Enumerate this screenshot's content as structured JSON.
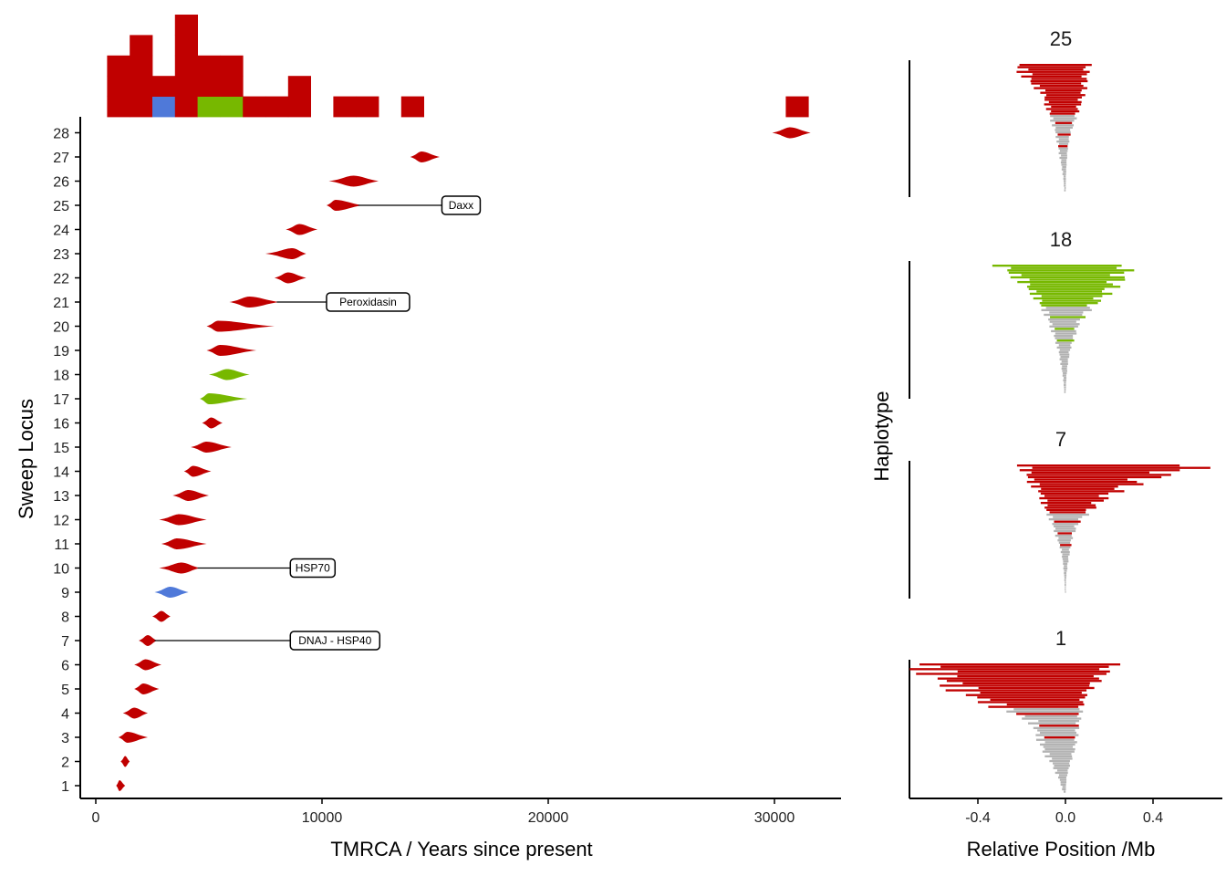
{
  "colors": {
    "red": "#c00000",
    "blue": "#4f79d9",
    "green": "#77b800",
    "grey": "#b3b3b3",
    "axis": "#000000"
  },
  "chart_data": [
    {
      "type": "violin",
      "xlabel": "TMRCA / Years since present",
      "ylabel": "Sweep Locus",
      "xlim": [
        -800,
        33000
      ],
      "x_ticks": [
        0,
        10000,
        20000,
        30000
      ],
      "x_tick_labels": [
        "0",
        "10000",
        "20000",
        "30000"
      ],
      "y_ticks": [
        1,
        2,
        3,
        4,
        5,
        6,
        7,
        8,
        9,
        10,
        11,
        12,
        13,
        14,
        15,
        16,
        17,
        18,
        19,
        20,
        21,
        22,
        23,
        24,
        25,
        26,
        27,
        28
      ],
      "y_tick_labels": [
        "1",
        "2",
        "3",
        "4",
        "5",
        "6",
        "7",
        "8",
        "9",
        "10",
        "11",
        "12",
        "13",
        "14",
        "15",
        "16",
        "17",
        "18",
        "19",
        "20",
        "21",
        "22",
        "23",
        "24",
        "25",
        "26",
        "27",
        "28"
      ],
      "loci": [
        {
          "locus": 1,
          "min": 900,
          "max": 1300,
          "peak": 1050,
          "color": "red"
        },
        {
          "locus": 2,
          "min": 1100,
          "max": 1500,
          "peak": 1300,
          "color": "red"
        },
        {
          "locus": 3,
          "min": 1000,
          "max": 2300,
          "peak": 1400,
          "color": "red"
        },
        {
          "locus": 4,
          "min": 1200,
          "max": 2300,
          "peak": 1700,
          "color": "red"
        },
        {
          "locus": 5,
          "min": 1700,
          "max": 2800,
          "peak": 2100,
          "color": "red"
        },
        {
          "locus": 6,
          "min": 1700,
          "max": 2900,
          "peak": 2200,
          "color": "red"
        },
        {
          "locus": 7,
          "min": 1900,
          "max": 2700,
          "peak": 2300,
          "color": "red"
        },
        {
          "locus": 8,
          "min": 2500,
          "max": 3300,
          "peak": 2900,
          "color": "red"
        },
        {
          "locus": 9,
          "min": 2600,
          "max": 4100,
          "peak": 3300,
          "color": "blue"
        },
        {
          "locus": 10,
          "min": 2800,
          "max": 4600,
          "peak": 3800,
          "color": "red"
        },
        {
          "locus": 11,
          "min": 2900,
          "max": 4900,
          "peak": 3600,
          "color": "red"
        },
        {
          "locus": 12,
          "min": 2800,
          "max": 4900,
          "peak": 3700,
          "color": "red"
        },
        {
          "locus": 13,
          "min": 3400,
          "max": 5000,
          "peak": 4100,
          "color": "red"
        },
        {
          "locus": 14,
          "min": 3900,
          "max": 5100,
          "peak": 4300,
          "color": "red"
        },
        {
          "locus": 15,
          "min": 4200,
          "max": 6000,
          "peak": 4900,
          "color": "red"
        },
        {
          "locus": 16,
          "min": 4700,
          "max": 5600,
          "peak": 5100,
          "color": "red"
        },
        {
          "locus": 17,
          "min": 4600,
          "max": 6700,
          "peak": 5000,
          "color": "green"
        },
        {
          "locus": 18,
          "min": 5000,
          "max": 6800,
          "peak": 5800,
          "color": "green"
        },
        {
          "locus": 19,
          "min": 4900,
          "max": 7100,
          "peak": 5500,
          "color": "red"
        },
        {
          "locus": 20,
          "min": 4900,
          "max": 7900,
          "peak": 5400,
          "color": "red"
        },
        {
          "locus": 21,
          "min": 5900,
          "max": 8100,
          "peak": 6800,
          "color": "red"
        },
        {
          "locus": 22,
          "min": 7900,
          "max": 9300,
          "peak": 8500,
          "color": "red"
        },
        {
          "locus": 23,
          "min": 7500,
          "max": 9300,
          "peak": 8700,
          "color": "red"
        },
        {
          "locus": 24,
          "min": 8400,
          "max": 9800,
          "peak": 9000,
          "color": "red"
        },
        {
          "locus": 25,
          "min": 10200,
          "max": 11800,
          "peak": 10600,
          "color": "red"
        },
        {
          "locus": 26,
          "min": 10300,
          "max": 12500,
          "peak": 11400,
          "color": "red"
        },
        {
          "locus": 27,
          "min": 13900,
          "max": 15200,
          "peak": 14400,
          "color": "red"
        },
        {
          "locus": 28,
          "min": 29900,
          "max": 31600,
          "peak": 30700,
          "color": "red"
        }
      ],
      "annotations": [
        {
          "label": "Daxx",
          "locus": 25,
          "from_x": 11600,
          "to_x": 15300
        },
        {
          "label": "Peroxidasin",
          "locus": 21,
          "from_x": 8000,
          "to_x": 10200
        },
        {
          "label": "HSP70",
          "locus": 10,
          "from_x": 4500,
          "to_x": 8600
        },
        {
          "label": "DNAJ - HSP40",
          "locus": 7,
          "from_x": 2600,
          "to_x": 8600
        }
      ]
    },
    {
      "type": "histogram",
      "bin_width": 1000,
      "bins": [
        {
          "x0": 500,
          "count": 3,
          "stack": [
            "red",
            "red",
            "red"
          ]
        },
        {
          "x0": 1500,
          "count": 4,
          "stack": [
            "red",
            "red",
            "red",
            "red"
          ]
        },
        {
          "x0": 2500,
          "count": 2,
          "stack": [
            "blue",
            "red"
          ]
        },
        {
          "x0": 3500,
          "count": 5,
          "stack": [
            "red",
            "red",
            "red",
            "red",
            "red"
          ]
        },
        {
          "x0": 4500,
          "count": 3,
          "stack": [
            "green",
            "red",
            "red"
          ]
        },
        {
          "x0": 5500,
          "count": 3,
          "stack": [
            "green",
            "red",
            "red"
          ]
        },
        {
          "x0": 6500,
          "count": 1,
          "stack": [
            "red"
          ]
        },
        {
          "x0": 7500,
          "count": 1,
          "stack": [
            "red"
          ]
        },
        {
          "x0": 8500,
          "count": 2,
          "stack": [
            "red",
            "red"
          ]
        },
        {
          "x0": 10500,
          "count": 1,
          "stack": [
            "red"
          ]
        },
        {
          "x0": 11500,
          "count": 1,
          "stack": [
            "red"
          ]
        },
        {
          "x0": 13500,
          "count": 1,
          "stack": [
            "red"
          ]
        },
        {
          "x0": 30500,
          "count": 1,
          "stack": [
            "red"
          ]
        }
      ]
    },
    {
      "type": "haplotype",
      "xlabel": "Relative Position /Mb",
      "ylabel": "Haplotype",
      "xlim": [
        -0.7,
        0.7
      ],
      "x_ticks": [
        -0.4,
        0.0,
        0.4
      ],
      "x_tick_labels": [
        "-0.4",
        "0.0",
        "0.4"
      ],
      "panels": [
        {
          "title": "25",
          "color": "red",
          "left": [
            -0.21,
            -0.17,
            -0.1,
            -0.08,
            -0.06,
            -0.04,
            -0.03,
            -0.02,
            -0.01,
            -0.005
          ],
          "right": [
            0.1,
            0.09,
            0.08,
            0.06,
            0.04,
            0.02,
            0.01,
            0.005,
            0.002,
            0.001
          ],
          "red_fraction": 0.72
        },
        {
          "title": "18",
          "color": "green",
          "left": [
            -0.29,
            -0.2,
            -0.14,
            -0.1,
            -0.07,
            -0.05,
            -0.03,
            -0.02,
            -0.01,
            -0.005
          ],
          "right": [
            0.28,
            0.24,
            0.18,
            0.11,
            0.06,
            0.04,
            0.02,
            0.01,
            0.004,
            0.001
          ],
          "red_fraction": 0.6
        },
        {
          "title": "7",
          "color": "red",
          "left": [
            -0.19,
            -0.16,
            -0.11,
            -0.09,
            -0.06,
            -0.04,
            -0.02,
            -0.01,
            -0.005,
            -0.002
          ],
          "right": [
            0.6,
            0.35,
            0.2,
            0.12,
            0.06,
            0.03,
            0.02,
            0.01,
            0.003,
            0.001
          ],
          "red_fraction": 0.68
        },
        {
          "title": "1",
          "color": "red",
          "left": [
            -0.65,
            -0.55,
            -0.45,
            -0.3,
            -0.15,
            -0.12,
            -0.1,
            -0.06,
            -0.03,
            -0.01
          ],
          "right": [
            0.21,
            0.15,
            0.09,
            0.07,
            0.06,
            0.05,
            0.04,
            0.02,
            0.005,
            0.001
          ],
          "red_fraction": 0.62
        }
      ]
    }
  ]
}
